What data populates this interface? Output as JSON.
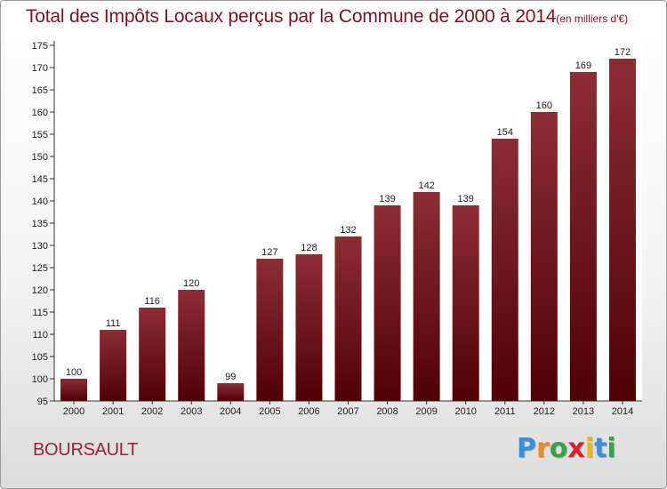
{
  "title": {
    "main": "Total des Impôts Locaux perçus par la Commune de 2000 à 2014",
    "unit": "(en milliers d'€)"
  },
  "commune": "BOURSAULT",
  "logo": {
    "letters": [
      "P",
      "r",
      "o",
      "x",
      "i",
      "t",
      "i"
    ],
    "colors": [
      "#3a8fd8",
      "#f08a1e",
      "#3aa14a",
      "#d8232a",
      "#f0b81e",
      "#3a8fd8",
      "#3aa14a"
    ]
  },
  "chart_data": {
    "type": "bar",
    "categories": [
      "2000",
      "2001",
      "2002",
      "2003",
      "2004",
      "2005",
      "2006",
      "2007",
      "2008",
      "2009",
      "2010",
      "2011",
      "2012",
      "2013",
      "2014"
    ],
    "values": [
      100,
      111,
      116,
      120,
      99,
      127,
      128,
      132,
      139,
      142,
      139,
      154,
      160,
      169,
      172
    ],
    "value_labels": [
      "100",
      "111",
      "116",
      "120",
      "99",
      "127",
      "128",
      "132",
      "139",
      "142",
      "139",
      "154",
      "160",
      "169",
      "172"
    ],
    "title": "Total des Impôts Locaux perçus par la Commune de 2000 à 2014",
    "xlabel": "",
    "ylabel": "",
    "ylim": [
      95,
      175
    ],
    "yticks": [
      "95",
      "100",
      "105",
      "110",
      "115",
      "120",
      "125",
      "130",
      "135",
      "140",
      "145",
      "150",
      "155",
      "160",
      "165",
      "170",
      "175"
    ],
    "grid": false,
    "legend": "none",
    "bar_color": "#7a1f26"
  }
}
